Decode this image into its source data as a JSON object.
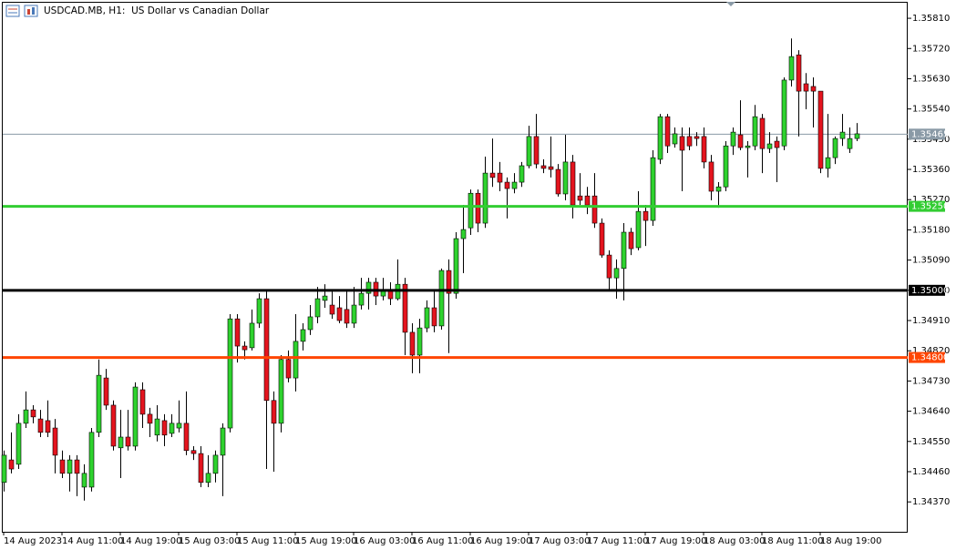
{
  "chart_data": {
    "type": "candlestick",
    "title": "USDCAD.MB, H1:  US Dollar vs Canadian Dollar",
    "up_color": "#2ed22e",
    "down_color": "#e4141e",
    "categories": [
      "14 Aug 2023",
      null,
      null,
      null,
      null,
      null,
      null,
      null,
      "14 Aug 11:00",
      null,
      null,
      null,
      null,
      null,
      null,
      null,
      "14 Aug 19:00",
      null,
      null,
      null,
      null,
      null,
      null,
      null,
      "15 Aug 03:00",
      null,
      null,
      null,
      null,
      null,
      null,
      null,
      "15 Aug 11:00",
      null,
      null,
      null,
      null,
      null,
      null,
      null,
      "15 Aug 19:00",
      null,
      null,
      null,
      null,
      null,
      null,
      null,
      "16 Aug 03:00",
      null,
      null,
      null,
      null,
      null,
      null,
      null,
      "16 Aug 11:00",
      null,
      null,
      null,
      null,
      null,
      null,
      null,
      "16 Aug 19:00",
      null,
      null,
      null,
      null,
      null,
      null,
      null,
      "17 Aug 03:00",
      null,
      null,
      null,
      null,
      null,
      null,
      null,
      "17 Aug 11:00",
      null,
      null,
      null,
      null,
      null,
      null,
      null,
      "17 Aug 19:00",
      null,
      null,
      null,
      null,
      null,
      null,
      null,
      "18 Aug 03:00",
      null,
      null,
      null,
      null,
      null,
      null,
      null,
      "18 Aug 11:00",
      null,
      null,
      null,
      null,
      null,
      null,
      null,
      "18 Aug 19:00",
      null,
      null,
      null,
      null,
      null
    ],
    "open": [
      1.34428,
      1.34495,
      1.34482,
      1.34604,
      1.34644,
      1.34617,
      1.34612,
      1.3459,
      1.34495,
      1.34455,
      1.34495,
      1.34414,
      1.34414,
      1.34577,
      1.34739,
      1.34658,
      1.34531,
      1.34563,
      1.34536,
      1.34704,
      1.34631,
      1.34569,
      1.34612,
      1.34574,
      1.3459,
      1.34604,
      1.34523,
      1.34514,
      1.34428,
      1.34455,
      1.34509,
      1.3459,
      1.34915,
      1.34834,
      1.34829,
      1.34902,
      1.34975,
      1.34672,
      1.34604,
      1.34794,
      1.34739,
      1.34848,
      1.34883,
      1.34921,
      1.3497,
      1.34956,
      1.34948,
      1.34943,
      1.34902,
      1.34956,
      1.34991,
      1.35024,
      1.34983,
      1.35002,
      1.34975,
      1.35018,
      1.34875,
      1.34807,
      1.34888,
      1.34948,
      1.34894,
      1.35059,
      1.34991,
      1.35154,
      1.35186,
      1.35289,
      1.352,
      1.35349,
      1.35349,
      1.35322,
      1.35303,
      1.35322,
      1.35371,
      1.35458,
      1.35371,
      1.35368,
      1.3536,
      1.35287,
      1.35382,
      1.35281,
      1.35281,
      1.35281,
      1.352,
      1.35105,
      1.35037,
      1.35065,
      1.35173,
      1.35127,
      1.35235,
      1.35208,
      1.3539,
      1.35517,
      1.35436,
      1.35458,
      1.35458,
      1.35458,
      1.35458,
      1.35382,
      1.35295,
      1.35308,
      1.3543,
      1.35463,
      1.35425,
      1.3543,
      1.35512,
      1.35422,
      1.35444,
      1.3543,
      1.35626,
      1.35701,
      1.35615,
      1.35607,
      1.35593,
      1.35363,
      1.35395,
      1.35452,
      1.35422,
      1.35452
    ],
    "high": [
      1.34523,
      1.34577,
      1.34631,
      1.34699,
      1.34658,
      1.34644,
      1.34672,
      1.34617,
      1.34523,
      1.34509,
      1.34509,
      1.34482,
      1.3459,
      1.34794,
      1.34766,
      1.34672,
      1.34644,
      1.34644,
      1.34726,
      1.34726,
      1.3465,
      1.34658,
      1.34631,
      1.34631,
      1.34672,
      1.34699,
      1.34536,
      1.34536,
      1.34509,
      1.34523,
      1.34604,
      1.34929,
      1.34929,
      1.34848,
      1.34943,
      1.34991,
      1.35002,
      1.34699,
      1.34807,
      1.34821,
      1.34929,
      1.34902,
      1.34956,
      1.3501,
      1.35018,
      1.35002,
      1.34983,
      1.34997,
      1.3501,
      1.35037,
      1.35037,
      1.35037,
      1.35037,
      1.35024,
      1.35092,
      1.35037,
      1.34902,
      1.34915,
      1.3497,
      1.34997,
      1.35065,
      1.35092,
      1.35173,
      1.35254,
      1.353,
      1.353,
      1.35398,
      1.35452,
      1.35382,
      1.35336,
      1.35349,
      1.35382,
      1.3549,
      1.35525,
      1.3539,
      1.35458,
      1.35376,
      1.35463,
      1.35403,
      1.35349,
      1.35308,
      1.35349,
      1.35214,
      1.35119,
      1.35092,
      1.352,
      1.35186,
      1.35295,
      1.35254,
      1.35417,
      1.35525,
      1.35525,
      1.35485,
      1.35485,
      1.35485,
      1.35471,
      1.35485,
      1.35403,
      1.35322,
      1.35444,
      1.35485,
      1.35566,
      1.35444,
      1.35552,
      1.35525,
      1.35471,
      1.35458,
      1.35634,
      1.3575,
      1.35715,
      1.35647,
      1.35634,
      1.35593,
      1.35525,
      1.35458,
      1.35525,
      1.35485,
      1.35498
    ],
    "low": [
      1.34401,
      1.34455,
      1.34468,
      1.3459,
      1.34604,
      1.34563,
      1.34563,
      1.34455,
      1.34441,
      1.34401,
      1.34387,
      1.34374,
      1.34401,
      1.34563,
      1.34644,
      1.34523,
      1.34441,
      1.34523,
      1.34523,
      1.3459,
      1.34563,
      1.3455,
      1.34536,
      1.34563,
      1.34577,
      1.34509,
      1.34495,
      1.34414,
      1.34414,
      1.34428,
      1.34387,
      1.34577,
      1.34785,
      1.34794,
      1.34821,
      1.34888,
      1.34468,
      1.3446,
      1.34577,
      1.34726,
      1.34699,
      1.34821,
      1.34867,
      1.34902,
      1.34948,
      1.34915,
      1.34902,
      1.34888,
      1.34888,
      1.34943,
      1.34943,
      1.34956,
      1.3497,
      1.34956,
      1.3497,
      1.34807,
      1.34753,
      1.34753,
      1.34875,
      1.34875,
      1.34883,
      1.34813,
      1.34975,
      1.35051,
      1.35165,
      1.35173,
      1.35186,
      1.35308,
      1.35295,
      1.35214,
      1.35289,
      1.35308,
      1.35363,
      1.35363,
      1.35349,
      1.35336,
      1.35279,
      1.35268,
      1.35214,
      1.35254,
      1.35227,
      1.35186,
      1.35097,
      1.35002,
      1.34975,
      1.3497,
      1.35105,
      1.35119,
      1.35132,
      1.35192,
      1.35376,
      1.35409,
      1.35425,
      1.35295,
      1.35417,
      1.3543,
      1.35363,
      1.35268,
      1.35246,
      1.35295,
      1.35403,
      1.35417,
      1.35336,
      1.35417,
      1.35349,
      1.35409,
      1.35322,
      1.35417,
      1.35607,
      1.35458,
      1.35539,
      1.35485,
      1.35349,
      1.35336,
      1.35376,
      1.3543,
      1.35409,
      1.35444
    ],
    "close": [
      1.34509,
      1.34468,
      1.34604,
      1.34644,
      1.34623,
      1.34577,
      1.34577,
      1.34509,
      1.34455,
      1.34495,
      1.34455,
      1.34455,
      1.34577,
      1.34747,
      1.34658,
      1.34536,
      1.34563,
      1.34536,
      1.34712,
      1.34631,
      1.34604,
      1.34617,
      1.34569,
      1.34604,
      1.34604,
      1.34523,
      1.34514,
      1.34428,
      1.34455,
      1.34509,
      1.3459,
      1.34915,
      1.34834,
      1.34823,
      1.34902,
      1.34975,
      1.34672,
      1.34604,
      1.34794,
      1.34739,
      1.34848,
      1.34883,
      1.34921,
      1.34975,
      1.34983,
      1.34929,
      1.3491,
      1.34902,
      1.34956,
      1.34991,
      1.35024,
      1.34983,
      1.35002,
      1.34975,
      1.35018,
      1.34875,
      1.34807,
      1.34888,
      1.34948,
      1.34894,
      1.35059,
      1.34991,
      1.35154,
      1.35181,
      1.35289,
      1.352,
      1.35349,
      1.35336,
      1.35322,
      1.35303,
      1.35322,
      1.35371,
      1.35458,
      1.35376,
      1.35363,
      1.3536,
      1.35287,
      1.35382,
      1.35254,
      1.35268,
      1.35254,
      1.352,
      1.35105,
      1.35037,
      1.35065,
      1.35173,
      1.35124,
      1.35235,
      1.35208,
      1.35395,
      1.35517,
      1.3543,
      1.35466,
      1.35417,
      1.3543,
      1.35452,
      1.35382,
      1.35295,
      1.35308,
      1.3543,
      1.35471,
      1.35425,
      1.3543,
      1.35517,
      1.35422,
      1.35436,
      1.35425,
      1.35626,
      1.35696,
      1.35593,
      1.35593,
      1.35593,
      1.35363,
      1.35395,
      1.35452,
      1.35471,
      1.35452,
      1.35466
    ],
    "ylim": [
      1.34281,
      1.35859
    ],
    "yticks": [
      {
        "value": 1.3581,
        "label": "1.35810"
      },
      {
        "value": 1.3572,
        "label": "1.35720"
      },
      {
        "value": 1.3563,
        "label": "1.35630"
      },
      {
        "value": 1.3554,
        "label": "1.35540"
      },
      {
        "value": 1.3545,
        "label": "1.35450"
      },
      {
        "value": 1.3536,
        "label": "1.35360"
      },
      {
        "value": 1.3527,
        "label": "1.35270"
      },
      {
        "value": 1.3518,
        "label": "1.35180"
      },
      {
        "value": 1.3509,
        "label": "1.35090"
      },
      {
        "value": 1.35,
        "label": "1.35000"
      },
      {
        "value": 1.3491,
        "label": "1.34910"
      },
      {
        "value": 1.3482,
        "label": "1.34820"
      },
      {
        "value": 1.3473,
        "label": "1.34730"
      },
      {
        "value": 1.3464,
        "label": "1.34640"
      },
      {
        "value": 1.3455,
        "label": "1.34550"
      },
      {
        "value": 1.3446,
        "label": "1.34460"
      },
      {
        "value": 1.3437,
        "label": "1.34370"
      }
    ],
    "grid": false,
    "last_price": {
      "value": 1.35465,
      "label": "1.35465",
      "color": "#8a9aa6"
    },
    "levels": [
      {
        "value": 1.3525,
        "label": "1.35250",
        "color": "#32cd32"
      },
      {
        "value": 1.35,
        "label": "1.35000",
        "color": "#000000"
      },
      {
        "value": 1.348,
        "label": "1.34800",
        "color": "#ff4500"
      }
    ]
  }
}
